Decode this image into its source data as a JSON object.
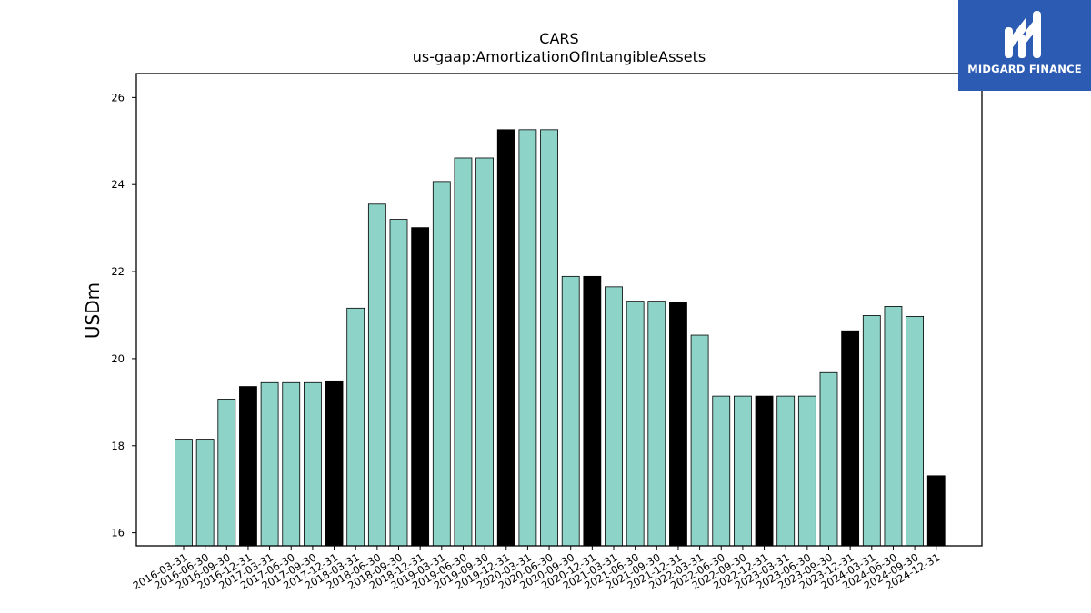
{
  "chart_data": {
    "type": "bar",
    "title": "CARS",
    "subtitle": "us-gaap:AmortizationOfIntangibleAssets",
    "xlabel": "",
    "ylabel": "USDm",
    "ylim": [
      15.7,
      26.55
    ],
    "yticks": [
      16,
      18,
      20,
      22,
      24,
      26
    ],
    "grid": false,
    "categories": [
      "2016-03-31",
      "2016-06-30",
      "2016-09-30",
      "2016-12-31",
      "2017-03-31",
      "2017-06-30",
      "2017-09-30",
      "2017-12-31",
      "2018-03-31",
      "2018-06-30",
      "2018-09-30",
      "2018-12-31",
      "2019-03-31",
      "2019-06-30",
      "2019-09-30",
      "2019-12-31",
      "2020-03-31",
      "2020-06-30",
      "2020-09-30",
      "2020-12-31",
      "2021-03-31",
      "2021-06-30",
      "2021-09-30",
      "2021-12-31",
      "2022-03-31",
      "2022-06-30",
      "2022-09-30",
      "2022-12-31",
      "2023-03-31",
      "2023-06-30",
      "2023-09-30",
      "2023-12-31",
      "2024-03-31",
      "2024-06-30",
      "2024-09-30",
      "2024-12-31"
    ],
    "values": [
      18.15,
      18.15,
      19.07,
      19.36,
      19.45,
      19.45,
      19.45,
      19.49,
      21.16,
      23.55,
      23.2,
      23.01,
      24.07,
      24.61,
      24.61,
      25.26,
      25.26,
      25.26,
      21.89,
      21.89,
      21.65,
      21.32,
      21.32,
      21.3,
      20.54,
      19.14,
      19.14,
      19.14,
      19.14,
      19.14,
      19.68,
      20.64,
      20.99,
      21.2,
      20.97,
      17.31
    ],
    "highlight": [
      false,
      false,
      false,
      true,
      false,
      false,
      false,
      true,
      false,
      false,
      false,
      true,
      false,
      false,
      false,
      true,
      false,
      false,
      false,
      true,
      false,
      false,
      false,
      true,
      false,
      false,
      false,
      true,
      false,
      false,
      false,
      true,
      false,
      false,
      false,
      true
    ],
    "colors": {
      "bar": "#8dd3c7",
      "highlight": "#000000",
      "edge": "#000000"
    }
  },
  "branding": {
    "logo_text": "MIDGARD FINANCE",
    "logo_bg": "#2b5bb3"
  }
}
